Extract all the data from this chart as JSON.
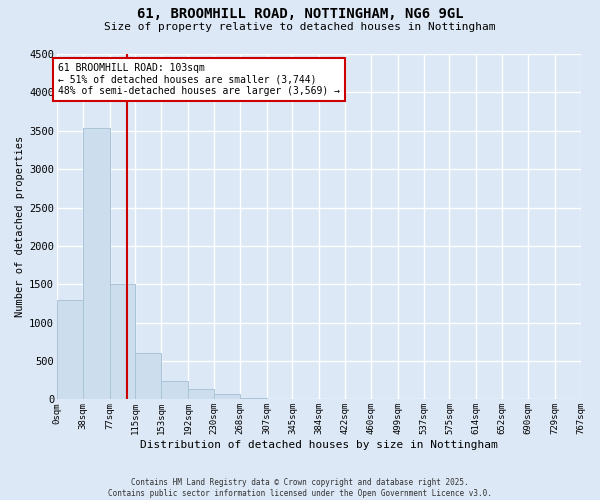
{
  "title": "61, BROOMHILL ROAD, NOTTINGHAM, NG6 9GL",
  "subtitle": "Size of property relative to detached houses in Nottingham",
  "xlabel": "Distribution of detached houses by size in Nottingham",
  "ylabel": "Number of detached properties",
  "bin_edges": [
    0,
    38,
    77,
    115,
    153,
    192,
    230,
    268,
    307,
    345,
    384,
    422,
    460,
    499,
    537,
    575,
    614,
    652,
    690,
    729,
    767
  ],
  "bar_heights": [
    1290,
    3540,
    1500,
    600,
    240,
    130,
    70,
    20,
    5,
    2,
    1,
    0,
    0,
    0,
    0,
    0,
    0,
    0,
    0,
    0
  ],
  "bar_color": "#ccdded",
  "bar_edgecolor": "#aac4d8",
  "property_size": 103,
  "property_line_color": "#cc0000",
  "annotation_title": "61 BROOMHILL ROAD: 103sqm",
  "annotation_line1": "← 51% of detached houses are smaller (3,744)",
  "annotation_line2": "48% of semi-detached houses are larger (3,569) →",
  "annotation_box_edgecolor": "#cc0000",
  "annotation_box_facecolor": "#ffffff",
  "tick_labels": [
    "0sqm",
    "38sqm",
    "77sqm",
    "115sqm",
    "153sqm",
    "192sqm",
    "230sqm",
    "268sqm",
    "307sqm",
    "345sqm",
    "384sqm",
    "422sqm",
    "460sqm",
    "499sqm",
    "537sqm",
    "575sqm",
    "614sqm",
    "652sqm",
    "690sqm",
    "729sqm",
    "767sqm"
  ],
  "ylim": [
    0,
    4500
  ],
  "yticks": [
    0,
    500,
    1000,
    1500,
    2000,
    2500,
    3000,
    3500,
    4000,
    4500
  ],
  "footer_line1": "Contains HM Land Registry data © Crown copyright and database right 2025.",
  "footer_line2": "Contains public sector information licensed under the Open Government Licence v3.0.",
  "bg_color": "#dce8f5",
  "plot_bg_color": "#dce8f5",
  "grid_color": "#ffffff",
  "title_fontsize": 10,
  "subtitle_fontsize": 8,
  "ylabel_fontsize": 7.5,
  "xlabel_fontsize": 8
}
